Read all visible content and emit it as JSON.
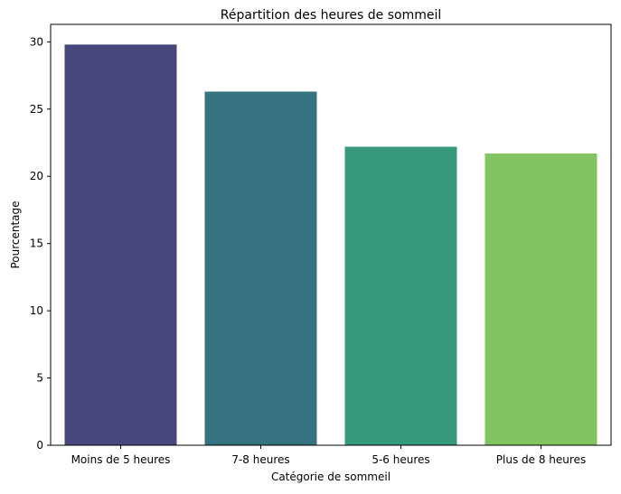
{
  "chart_data": {
    "type": "bar",
    "title": "Répartition des heures de sommeil",
    "xlabel": "Catégorie de sommeil",
    "ylabel": "Pourcentage",
    "categories": [
      "Moins de 5 heures",
      "7-8 heures",
      "5-6 heures",
      "Plus de 8 heures"
    ],
    "values": [
      29.8,
      26.3,
      22.2,
      21.7
    ],
    "colors": [
      "#48487c",
      "#357480",
      "#36997b",
      "#82c362"
    ],
    "ylim": [
      0,
      31.3
    ],
    "yticks": [
      0,
      5,
      10,
      15,
      20,
      25,
      30
    ],
    "grid": false,
    "legend": "none"
  }
}
